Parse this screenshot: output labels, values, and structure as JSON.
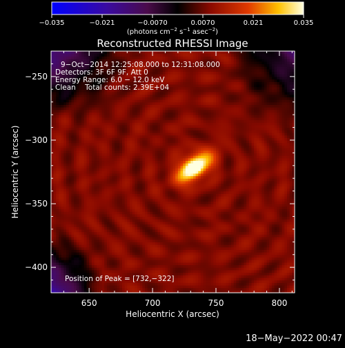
{
  "chart_data": {
    "type": "heatmap",
    "title": "Reconstructed RHESSI Image",
    "xlabel": "Heliocentric X (arcsec)",
    "ylabel": "Heliocentric Y (arcsec)",
    "xlim": [
      620,
      812
    ],
    "ylim": [
      -420,
      -230
    ],
    "x_ticks": [
      {
        "value": 650,
        "label": "650"
      },
      {
        "value": 700,
        "label": "700"
      },
      {
        "value": 750,
        "label": "750"
      },
      {
        "value": 800,
        "label": "800"
      }
    ],
    "y_ticks": [
      {
        "value": -250,
        "label": "−250"
      },
      {
        "value": -300,
        "label": "−300"
      },
      {
        "value": -350,
        "label": "−350"
      },
      {
        "value": -400,
        "label": "−400"
      }
    ],
    "peak": {
      "x": 732,
      "y": -322
    },
    "colorbar": {
      "range": [
        -0.035,
        0.035
      ],
      "ticks": [
        {
          "value": -0.035,
          "label": "−0.035"
        },
        {
          "value": -0.021,
          "label": "−0.021"
        },
        {
          "value": -0.007,
          "label": "−0.0070"
        },
        {
          "value": 0.007,
          "label": "0.0070"
        },
        {
          "value": 0.021,
          "label": "0.021"
        },
        {
          "value": 0.035,
          "label": "0.035"
        }
      ],
      "units_prefix": "(photons cm",
      "units_exp1": "−2",
      "units_mid": " s",
      "units_exp2": "−1",
      "units_mid2": " asec",
      "units_exp3": "−2",
      "units_suffix": ")"
    },
    "annotations": {
      "time_range": "9−Oct−2014 12:25:08.000 to 12:31:08.000",
      "detectors": "Detectors: 3F 6F 9F, Att 0",
      "energy": "Energy Range: 6.0 − 12.0 keV",
      "method": "Clean    Total counts: 2.39E+04",
      "peak_label": "Position of Peak = [732,−322]"
    }
  },
  "footer": {
    "timestamp": "18−May−2022 00:47"
  },
  "colors": {
    "background": "#000000",
    "foreground": "#ffffff",
    "colorbar_stops": [
      "#0000ff",
      "#3a0aa0",
      "#4a0b4a",
      "#000000",
      "#8a0a00",
      "#e03a00",
      "#ffc000",
      "#ffffe0"
    ]
  }
}
